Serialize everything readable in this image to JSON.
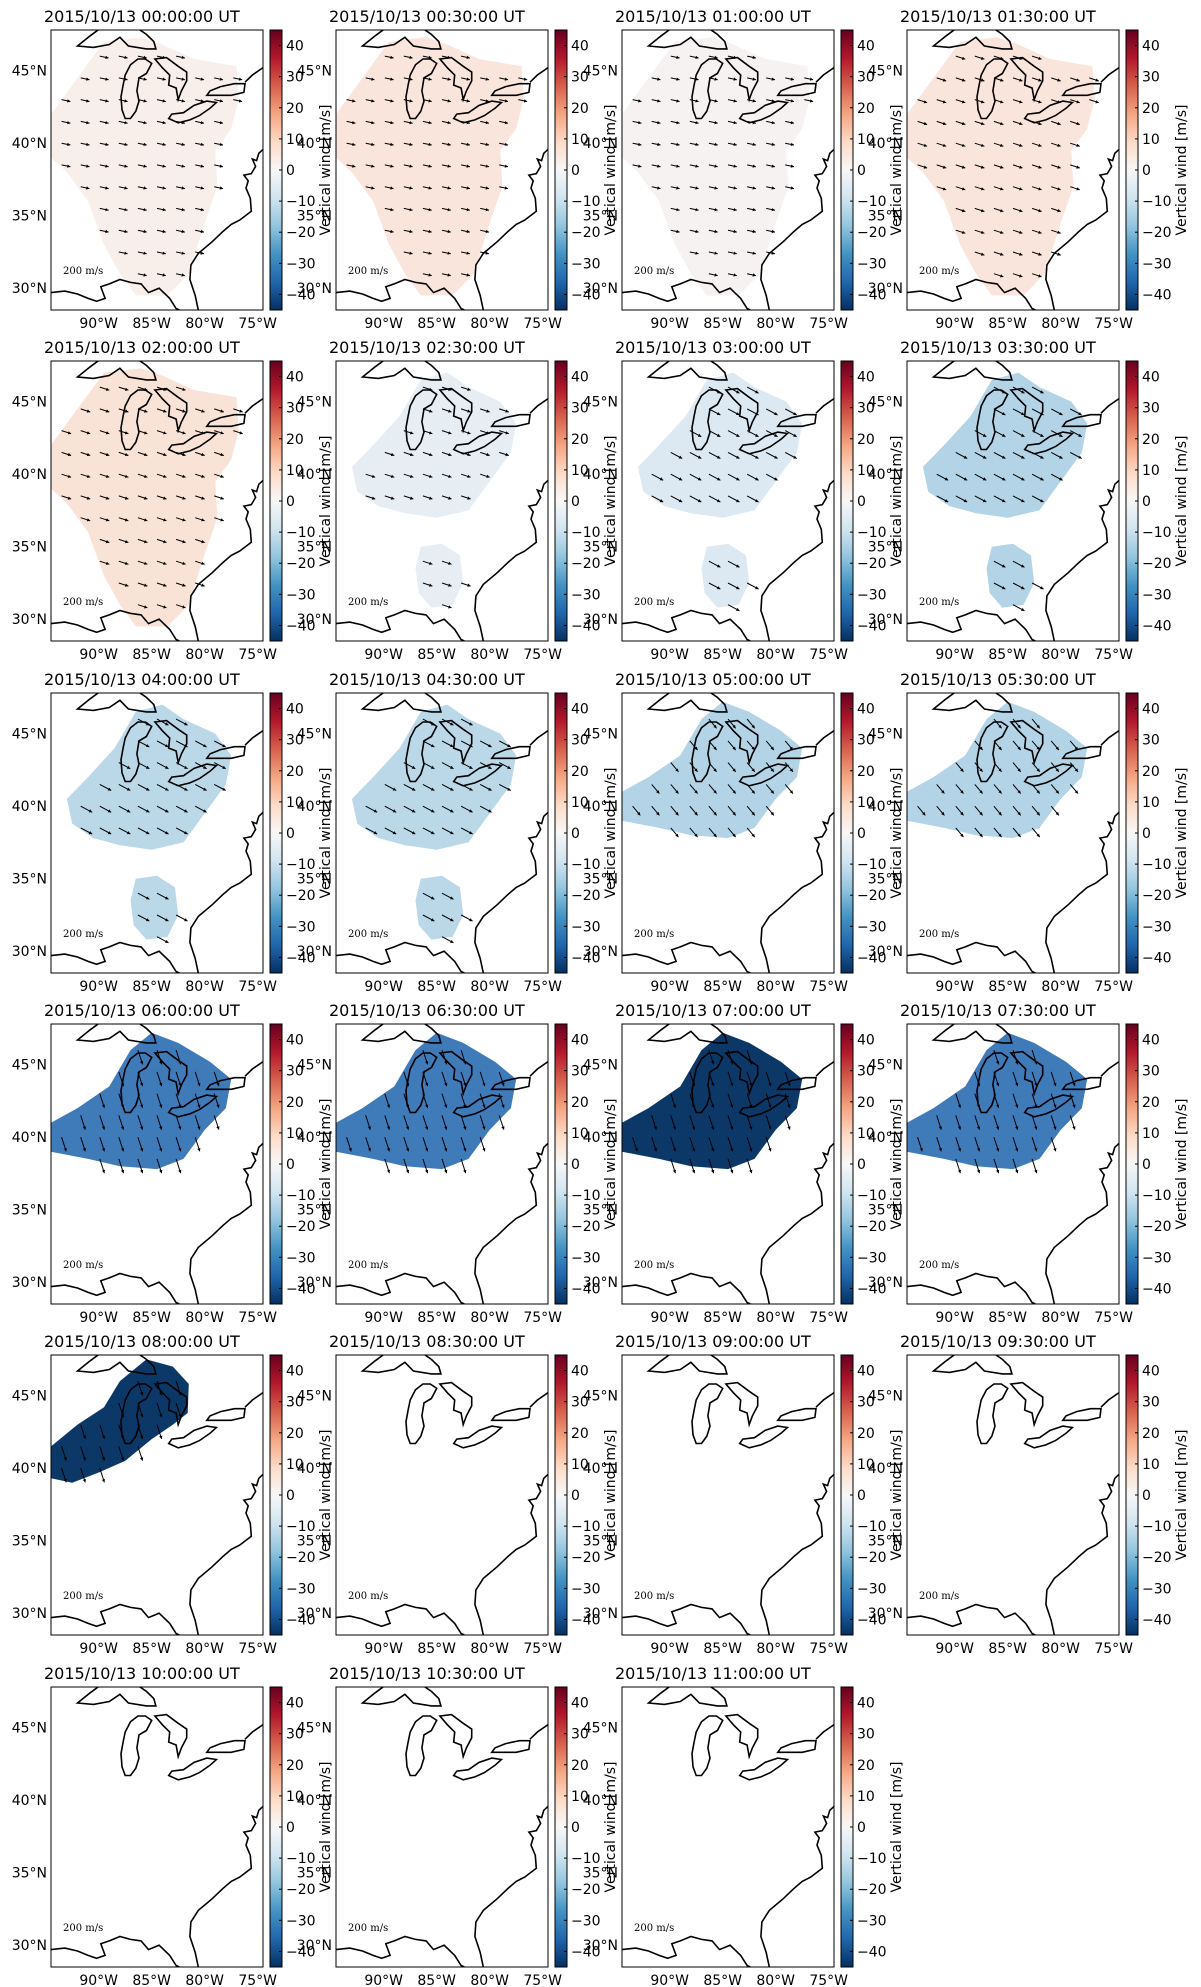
{
  "figure": {
    "colorbar_label": "Vertical wind [m/s]",
    "colorbar_ticks": [
      40,
      30,
      20,
      10,
      0,
      -10,
      -20,
      -30,
      -40
    ],
    "colorbar_range": [
      -45,
      45
    ],
    "colormap": [
      "#053061",
      "#2166ac",
      "#4393c3",
      "#92c5de",
      "#d1e5f0",
      "#f7f7f7",
      "#fddbc7",
      "#f4a582",
      "#d6604d",
      "#b2182b",
      "#67001f"
    ],
    "lon_ticks": [
      "90°W",
      "85°W",
      "80°W",
      "75°W"
    ],
    "lat_ticks": [
      "45°N",
      "40°N",
      "35°N",
      "30°N"
    ],
    "scale_label": "200 m/s",
    "grid": false
  },
  "chart_data": [
    {
      "type": "heatmap",
      "title": "2015/10/13 00:00:00 UT",
      "region": "Eastern US",
      "mean_vertical_wind": 2,
      "fill": "#f8efea",
      "has_vectors": true
    },
    {
      "type": "heatmap",
      "title": "2015/10/13 00:30:00 UT",
      "region": "Eastern US",
      "mean_vertical_wind": 5,
      "fill": "#fae5dc",
      "has_vectors": true
    },
    {
      "type": "heatmap",
      "title": "2015/10/13 01:00:00 UT",
      "region": "Eastern US",
      "mean_vertical_wind": 1,
      "fill": "#f5f2f1",
      "has_vectors": true
    },
    {
      "type": "heatmap",
      "title": "2015/10/13 01:30:00 UT",
      "region": "Eastern US",
      "mean_vertical_wind": 5,
      "fill": "#fae5dc",
      "has_vectors": true
    },
    {
      "type": "heatmap",
      "title": "2015/10/13 02:00:00 UT",
      "region": "Eastern US",
      "mean_vertical_wind": 6,
      "fill": "#f9e2d6",
      "has_vectors": true
    },
    {
      "type": "heatmap",
      "title": "2015/10/13 02:30:00 UT",
      "region": "Great Lakes + Southeast",
      "mean_vertical_wind": -3,
      "fill": "#e6eef4",
      "has_vectors": true
    },
    {
      "type": "heatmap",
      "title": "2015/10/13 03:00:00 UT",
      "region": "Great Lakes + Southeast",
      "mean_vertical_wind": -5,
      "fill": "#dde9f2",
      "has_vectors": true
    },
    {
      "type": "heatmap",
      "title": "2015/10/13 03:30:00 UT",
      "region": "Great Lakes + Southeast",
      "mean_vertical_wind": -15,
      "fill": "#b2d4e6",
      "has_vectors": true
    },
    {
      "type": "heatmap",
      "title": "2015/10/13 04:00:00 UT",
      "region": "Great Lakes + Southeast",
      "mean_vertical_wind": -13,
      "fill": "#bad8e8",
      "has_vectors": true
    },
    {
      "type": "heatmap",
      "title": "2015/10/13 04:30:00 UT",
      "region": "Great Lakes + Southeast",
      "mean_vertical_wind": -13,
      "fill": "#bad8e8",
      "has_vectors": true
    },
    {
      "type": "heatmap",
      "title": "2015/10/13 05:00:00 UT",
      "region": "Great Lakes",
      "mean_vertical_wind": -15,
      "fill": "#b2d4e6",
      "has_vectors": true
    },
    {
      "type": "heatmap",
      "title": "2015/10/13 05:30:00 UT",
      "region": "Great Lakes",
      "mean_vertical_wind": -15,
      "fill": "#b2d4e6",
      "has_vectors": true
    },
    {
      "type": "heatmap",
      "title": "2015/10/13 06:00:00 UT",
      "region": "Great Lakes",
      "mean_vertical_wind": -30,
      "fill": "#3f7ab9",
      "has_vectors": true
    },
    {
      "type": "heatmap",
      "title": "2015/10/13 06:30:00 UT",
      "region": "Great Lakes",
      "mean_vertical_wind": -30,
      "fill": "#3f7ab9",
      "has_vectors": true
    },
    {
      "type": "heatmap",
      "title": "2015/10/13 07:00:00 UT",
      "region": "Great Lakes",
      "mean_vertical_wind": -42,
      "fill": "#0c3868",
      "has_vectors": true
    },
    {
      "type": "heatmap",
      "title": "2015/10/13 07:30:00 UT",
      "region": "Great Lakes",
      "mean_vertical_wind": -30,
      "fill": "#3f7ab9",
      "has_vectors": true
    },
    {
      "type": "heatmap",
      "title": "2015/10/13 08:00:00 UT",
      "region": "Northern Great Lakes",
      "mean_vertical_wind": -42,
      "fill": "#0c3868",
      "has_vectors": true
    },
    {
      "type": "heatmap",
      "title": "2015/10/13 08:30:00 UT",
      "region": "none",
      "mean_vertical_wind": null,
      "fill": "",
      "has_vectors": false
    },
    {
      "type": "heatmap",
      "title": "2015/10/13 09:00:00 UT",
      "region": "none",
      "mean_vertical_wind": null,
      "fill": "",
      "has_vectors": false
    },
    {
      "type": "heatmap",
      "title": "2015/10/13 09:30:00 UT",
      "region": "none",
      "mean_vertical_wind": null,
      "fill": "",
      "has_vectors": false
    },
    {
      "type": "heatmap",
      "title": "2015/10/13 10:00:00 UT",
      "region": "none",
      "mean_vertical_wind": null,
      "fill": "",
      "has_vectors": false
    },
    {
      "type": "heatmap",
      "title": "2015/10/13 10:30:00 UT",
      "region": "none",
      "mean_vertical_wind": null,
      "fill": "",
      "has_vectors": false
    },
    {
      "type": "heatmap",
      "title": "2015/10/13 11:00:00 UT",
      "region": "none",
      "mean_vertical_wind": null,
      "fill": "",
      "has_vectors": false
    }
  ]
}
